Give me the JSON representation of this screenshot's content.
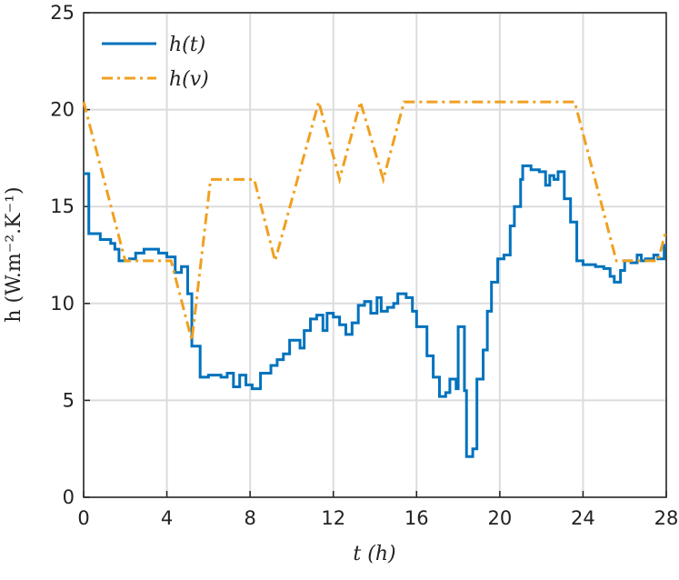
{
  "chart_data": {
    "type": "line",
    "step": "post",
    "xlabel": "t (h)",
    "ylabel": "h (W.m⁻².K⁻¹)",
    "xlim": [
      0,
      28
    ],
    "xticks": [
      0,
      4,
      8,
      12,
      16,
      20,
      24,
      28
    ],
    "ylim": [
      0,
      25
    ],
    "yticks": [
      0,
      5,
      10,
      15,
      20,
      25
    ],
    "grid": true,
    "legend": "top-left",
    "series": [
      {
        "name": "h(t)",
        "color": "#0072bd",
        "style": "solid",
        "step": true,
        "x": [
          0,
          0.25,
          0.8,
          1.3,
          1.5,
          1.7,
          2.2,
          2.5,
          2.9,
          3.6,
          4.0,
          4.4,
          4.7,
          5.0,
          5.2,
          5.6,
          6.0,
          6.6,
          6.9,
          7.2,
          7.5,
          7.8,
          8.1,
          8.5,
          9.0,
          9.3,
          9.6,
          9.9,
          10.4,
          10.6,
          10.9,
          11.2,
          11.5,
          11.7,
          12.0,
          12.3,
          12.6,
          12.9,
          13.2,
          13.5,
          13.8,
          14.1,
          14.3,
          14.6,
          14.9,
          15.1,
          15.5,
          15.8,
          16.0,
          16.5,
          16.8,
          17.1,
          17.4,
          17.6,
          17.9,
          18.0,
          18.3,
          18.4,
          18.7,
          18.9,
          19.2,
          19.4,
          19.6,
          19.9,
          20.2,
          20.5,
          20.7,
          21.0,
          21.1,
          21.5,
          21.9,
          22.2,
          22.4,
          22.6,
          22.8,
          23.1,
          23.4,
          23.7,
          24.0,
          24.6,
          25.0,
          25.3,
          25.5,
          25.8,
          26.0,
          26.3,
          26.6,
          26.8,
          27.0,
          27.4,
          27.6,
          27.9,
          28
        ],
        "values": [
          16.7,
          13.6,
          13.3,
          13.1,
          12.8,
          12.2,
          12.3,
          12.6,
          12.8,
          12.6,
          12.4,
          11.6,
          11.9,
          10.5,
          7.8,
          6.2,
          6.3,
          6.2,
          6.4,
          5.7,
          6.3,
          5.8,
          5.6,
          6.4,
          6.8,
          7.1,
          7.4,
          8.1,
          7.7,
          8.6,
          9.2,
          9.4,
          8.6,
          9.5,
          9.3,
          8.9,
          8.4,
          9.0,
          9.9,
          10.1,
          9.5,
          10.3,
          9.6,
          9.8,
          10.0,
          10.5,
          10.3,
          9.6,
          8.8,
          7.3,
          6.2,
          5.2,
          5.4,
          6.1,
          5.6,
          8.8,
          5.5,
          2.1,
          2.5,
          6.1,
          7.6,
          9.6,
          11.1,
          12.3,
          12.5,
          14.0,
          15.0,
          16.4,
          17.1,
          16.9,
          16.8,
          16.1,
          16.6,
          16.4,
          16.8,
          15.4,
          14.2,
          12.2,
          12.0,
          11.9,
          11.8,
          11.4,
          11.1,
          11.7,
          12.2,
          12.1,
          12.5,
          12.2,
          12.3,
          12.5,
          12.3,
          13.0,
          13.0
        ]
      },
      {
        "name": "h(v)",
        "color": "#f0a020",
        "style": "dashdot",
        "step": false,
        "x": [
          0,
          2,
          4.2,
          5.2,
          6.1,
          8.2,
          9.2,
          11.3,
          12.3,
          13.3,
          14.4,
          15.4,
          23.6,
          25.6,
          27.6,
          28
        ],
        "values": [
          20.4,
          12.2,
          12.2,
          8.1,
          16.4,
          16.4,
          12.2,
          20.4,
          16.4,
          20.4,
          16.4,
          20.4,
          20.4,
          12.2,
          12.2,
          13.8
        ]
      }
    ]
  }
}
